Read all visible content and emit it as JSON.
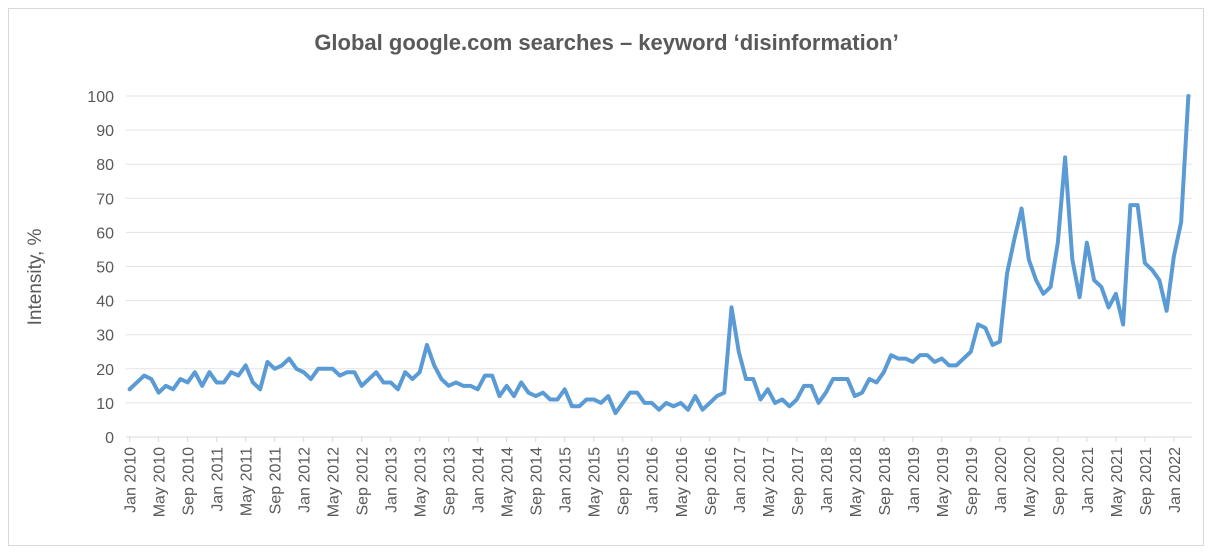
{
  "chart_data": {
    "type": "line",
    "title": "Global google.com searches – keyword ‘disinformation’",
    "xlabel": "",
    "ylabel": "Intensity, %",
    "ylim": [
      0,
      100
    ],
    "yticks": [
      "0",
      "10",
      "20",
      "30",
      "40",
      "50",
      "60",
      "70",
      "80",
      "90",
      "100"
    ],
    "xtick_labels": [
      "Jan 2010",
      "May 2010",
      "Sep 2010",
      "Jan 2011",
      "May 2011",
      "Sep 2011",
      "Jan 2012",
      "May 2012",
      "Sep 2012",
      "Jan 2013",
      "May 2013",
      "Sep 2013",
      "Jan 2014",
      "May 2014",
      "Sep 2014",
      "Jan 2015",
      "May 2015",
      "Sep 2015",
      "Jan 2016",
      "May 2016",
      "Sep 2016",
      "Jan 2017",
      "May 2017",
      "Sep 2017",
      "Jan 2018",
      "May 2018",
      "Sep 2018",
      "Jan 2019",
      "May 2019",
      "Sep 2019",
      "Jan 2020",
      "May 2020",
      "Sep 2020",
      "Jan 2021",
      "May 2021",
      "Sep 2021",
      "Jan 2022"
    ],
    "x_start": "Jan 2010",
    "x_end": "Apr 2022",
    "grid": true,
    "line_color": "#5b9bd5",
    "series": [
      {
        "values": [
          14,
          16,
          18,
          17,
          13,
          15,
          14,
          17,
          16,
          19,
          15,
          19,
          16,
          16,
          19,
          18,
          21,
          16,
          14,
          22,
          20,
          21,
          23,
          20,
          19,
          17,
          20,
          20,
          20,
          18,
          19,
          19,
          15,
          17,
          19,
          16,
          16,
          14,
          19,
          17,
          19,
          27,
          21,
          17,
          15,
          16,
          15,
          15,
          14,
          18,
          18,
          12,
          15,
          12,
          16,
          13,
          12,
          13,
          11,
          11,
          14,
          9,
          9,
          11,
          11,
          10,
          12,
          7,
          10,
          13,
          13,
          10,
          10,
          8,
          10,
          9,
          10,
          8,
          12,
          8,
          10,
          12,
          13,
          38,
          25,
          17,
          17,
          11,
          14,
          10,
          11,
          9,
          11,
          15,
          15,
          10,
          13,
          17,
          17,
          17,
          12,
          13,
          17,
          16,
          19,
          24,
          23,
          23,
          22,
          24,
          24,
          22,
          23,
          21,
          21,
          23,
          25,
          33,
          32,
          27,
          28,
          48,
          58,
          67,
          52,
          46,
          42,
          44,
          57,
          82,
          52,
          41,
          57,
          46,
          44,
          38,
          42,
          33,
          68,
          68,
          51,
          49,
          46,
          37,
          53,
          63,
          100
        ]
      }
    ]
  }
}
